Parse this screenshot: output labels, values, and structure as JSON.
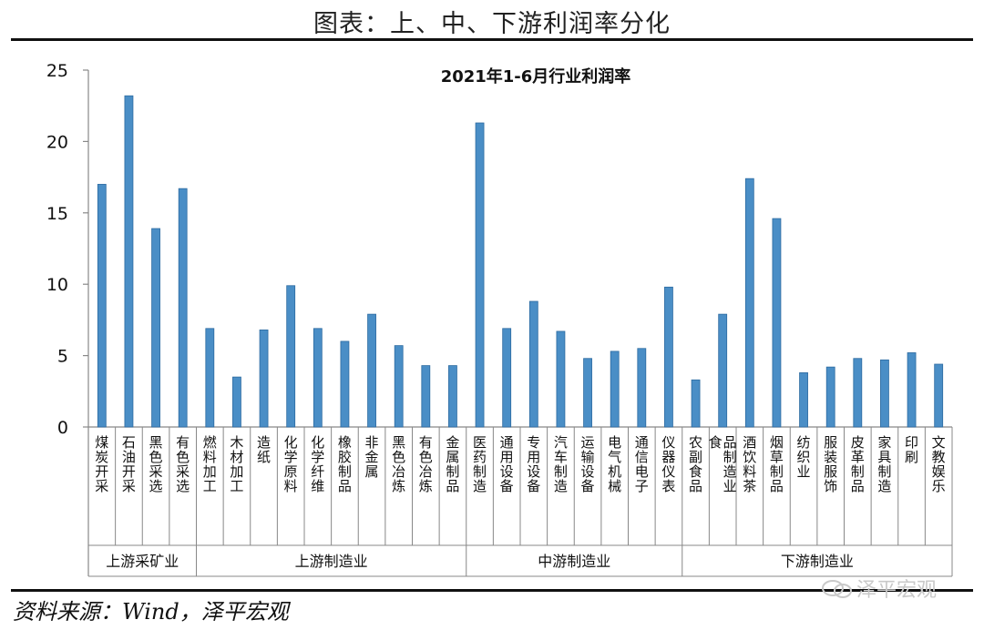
{
  "figure_title": "图表：上、中、下游利润率分化",
  "source": "资料来源：Wind，泽平宏观",
  "watermark": "泽平宏观",
  "colors": {
    "bar_fill": "#4a8ec6",
    "bar_edge": "#2c6aa0",
    "axis": "#888888"
  },
  "chart_data": {
    "type": "bar",
    "title": "2021年1-6月行业利润率",
    "xlabel": "",
    "ylabel": "",
    "ylim": [
      0,
      25
    ],
    "yticks": [
      0,
      5,
      10,
      15,
      20,
      25
    ],
    "grid": false,
    "categories": [
      "煤炭开采",
      "石油开采",
      "黑色采选",
      "有色采选",
      "燃料加工",
      "木材加工",
      "造纸",
      "化学原料",
      "化学纤维",
      "橡胶制品",
      "非金属",
      "黑色冶炼",
      "有色冶炼",
      "金属制品",
      "医药制造",
      "通用设备",
      "专用设备",
      "汽车制造",
      "运输设备",
      "电气机械",
      "通信电子",
      "仪器仪表",
      "农副食品",
      "食品制造业",
      "酒饮料茶",
      "烟草制品",
      "纺织业",
      "服装服饰",
      "皮革制品",
      "家具制造",
      "印刷",
      "文教娱乐"
    ],
    "values": [
      17.0,
      23.2,
      13.9,
      16.7,
      6.9,
      3.5,
      6.8,
      9.9,
      6.9,
      6.0,
      7.9,
      5.7,
      4.3,
      4.3,
      21.3,
      6.9,
      8.8,
      6.7,
      4.8,
      5.3,
      5.5,
      9.8,
      3.3,
      7.9,
      17.4,
      14.6,
      3.8,
      4.2,
      4.8,
      4.7,
      5.2,
      4.4
    ],
    "groups": [
      {
        "label": "上游采矿业",
        "start": 0,
        "end": 3
      },
      {
        "label": "上游制造业",
        "start": 4,
        "end": 13
      },
      {
        "label": "中游制造业",
        "start": 14,
        "end": 21
      },
      {
        "label": "下游制造业",
        "start": 22,
        "end": 31
      }
    ]
  }
}
